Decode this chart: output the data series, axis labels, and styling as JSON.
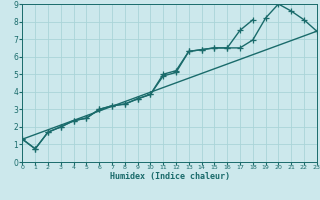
{
  "title": "",
  "xlabel": "Humidex (Indice chaleur)",
  "xlim": [
    0,
    23
  ],
  "ylim": [
    0,
    9
  ],
  "bg_color": "#cce8ec",
  "grid_color": "#aad4d8",
  "line_color": "#1a6b6b",
  "line1_x": [
    0,
    1,
    2,
    3,
    4,
    5,
    6,
    7,
    8,
    9,
    10,
    11,
    12,
    13,
    14,
    15,
    16,
    17,
    18,
    19,
    20,
    21,
    22,
    23
  ],
  "line1_y": [
    1.3,
    0.75,
    1.7,
    2.0,
    2.35,
    2.5,
    3.0,
    3.2,
    3.3,
    3.6,
    3.85,
    4.9,
    5.1,
    6.3,
    6.4,
    6.5,
    6.5,
    6.5,
    6.95,
    8.2,
    9.0,
    8.6,
    8.1,
    7.45
  ],
  "line2_x": [
    0,
    1,
    2,
    3,
    4,
    5,
    6,
    7,
    8,
    9,
    10,
    11,
    12,
    13,
    14,
    15,
    16,
    17,
    18
  ],
  "line2_y": [
    1.3,
    0.75,
    1.7,
    2.0,
    2.35,
    2.5,
    3.0,
    3.2,
    3.3,
    3.6,
    3.85,
    5.0,
    5.2,
    6.3,
    6.4,
    6.5,
    6.5,
    7.5,
    8.1
  ],
  "line3_x": [
    0,
    23
  ],
  "line3_y": [
    1.3,
    7.45
  ],
  "marker": "+",
  "markersize": 4,
  "linewidth": 1.0
}
